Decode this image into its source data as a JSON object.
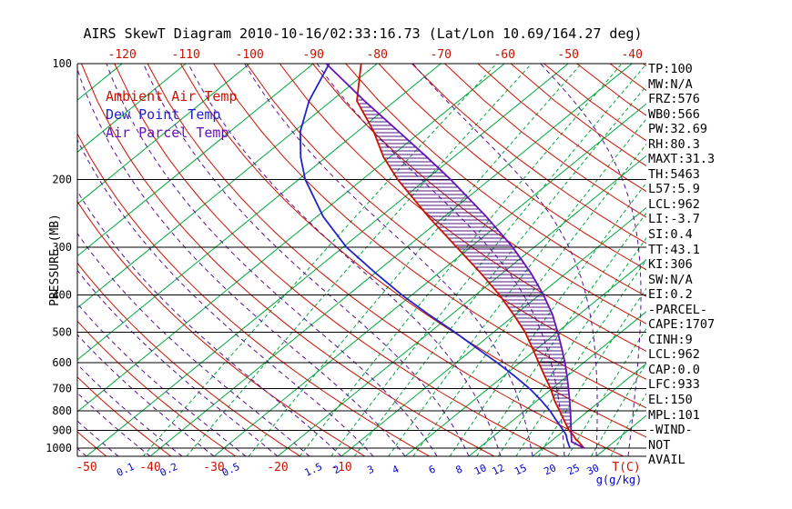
{
  "title": "AIRS SkewT Diagram 2010-10-16/02:33:16.73 (Lat/Lon 10.69/164.27 deg)",
  "legend": {
    "ambient": {
      "label": "Ambient Air Temp",
      "color": "#cc1100"
    },
    "dewpoint": {
      "label": "Dew Point Temp",
      "color": "#2222cc"
    },
    "parcel": {
      "label": "Air Parcel Temp",
      "color": "#6611bb"
    }
  },
  "axes": {
    "pressure_label": "PRESSURE (MB)",
    "pressure_ticks": [
      100,
      200,
      300,
      400,
      500,
      600,
      700,
      800,
      900,
      1000
    ],
    "top_temp_ticks": [
      -120,
      -110,
      -100,
      -90,
      -80,
      -70,
      -60,
      -50,
      -40
    ],
    "bottom_temp_ticks": [
      -50,
      -40,
      -30,
      -20,
      -10
    ],
    "temp_unit_label": "T(C)",
    "mixing_ratio_labels": [
      0.1,
      0.2,
      0.5,
      1.5,
      2,
      3,
      4,
      6,
      8,
      10,
      12,
      15,
      20,
      25,
      30
    ],
    "mixing_unit_label": "g(g/kg)"
  },
  "stats": [
    "TP:100",
    "MW:N/A",
    "FRZ:576",
    "WB0:566",
    "PW:32.69",
    "RH:80.3",
    "MAXT:31.3",
    "TH:5463",
    "L57:5.9",
    "LCL:962",
    "LI:-3.7",
    "SI:0.4",
    "TT:43.1",
    "KI:306",
    "SW:N/A",
    "EI:0.2",
    "-PARCEL-",
    "CAPE:1707",
    "CINH:9",
    "LCL:962",
    "CAP:0.0",
    "LFC:933",
    "EL:150",
    "MPL:101",
    "-WIND-",
    "NOT",
    "AVAIL"
  ],
  "chart_data": {
    "type": "line",
    "title": "AIRS SkewT Diagram 2010-10-16/02:33:16.73 (Lat/Lon 10.69/164.27 deg)",
    "xlabel": "T(C)",
    "ylabel": "PRESSURE (MB)",
    "y_axis": {
      "scale": "log",
      "range": [
        100,
        1050
      ],
      "ticks": [
        100,
        200,
        300,
        400,
        500,
        600,
        700,
        800,
        900,
        1000
      ]
    },
    "x_axis": {
      "skewed": true,
      "top_ticks": [
        -120,
        -110,
        -100,
        -90,
        -80,
        -70,
        -60,
        -50,
        -40
      ],
      "bottom_ticks": [
        -50,
        -40,
        -30,
        -20,
        -10
      ]
    },
    "grid": {
      "isotherms_c": {
        "min": -130,
        "max": 50,
        "step": 10,
        "color": "#00a83c"
      },
      "dry_adiabats_c": {
        "min": -60,
        "max": 180,
        "step": 10,
        "color": "#cc1100"
      },
      "moist_adiabats_c": {
        "min": -55,
        "max": 40,
        "step": 5,
        "color": "#550f99"
      },
      "mixing_ratio_g_kg": [
        0.1,
        0.2,
        0.5,
        1,
        1.5,
        2,
        3,
        4,
        6,
        8,
        10,
        12,
        15,
        20,
        25,
        30
      ],
      "mixing_color": "#00a83c"
    },
    "levels_hpa": [
      1000,
      962,
      950,
      925,
      900,
      850,
      800,
      750,
      700,
      650,
      600,
      550,
      500,
      450,
      400,
      350,
      300,
      250,
      200,
      175,
      150,
      125,
      100
    ],
    "series": [
      {
        "name": "Ambient Air Temp",
        "color": "#cc1100",
        "values": [
          26.5,
          24.4,
          23.6,
          22.3,
          20.8,
          18.2,
          15.5,
          12.6,
          9.8,
          6.5,
          3.0,
          -0.8,
          -5.0,
          -10.2,
          -16.2,
          -23.5,
          -32.2,
          -42.5,
          -54.5,
          -61.0,
          -67.5,
          -76.0,
          -82.5
        ]
      },
      {
        "name": "Dew Point Temp",
        "color": "#2222cc",
        "values": [
          24.3,
          22.7,
          22.2,
          21.2,
          19.9,
          17.0,
          14.0,
          10.5,
          6.5,
          1.8,
          -3.5,
          -9.5,
          -16.0,
          -23.5,
          -31.5,
          -40.0,
          -49.5,
          -59.0,
          -69.0,
          -74.0,
          -79.0,
          -83.5,
          -87.5
        ]
      },
      {
        "name": "Air Parcel Temp",
        "color": "#6611bb",
        "values": [
          26.5,
          23.3,
          22.9,
          22.0,
          21.1,
          19.2,
          17.2,
          15.0,
          12.6,
          10.0,
          7.1,
          3.8,
          0.1,
          -4.1,
          -9.3,
          -15.6,
          -23.4,
          -33.4,
          -46.2,
          -54.2,
          -63.6,
          -74.8,
          -88.0
        ]
      }
    ],
    "cape_hatch_between": [
      "Air Parcel Temp",
      "Ambient Air Temp"
    ],
    "annotations": {
      "hatch_color": "#3a0070"
    }
  }
}
